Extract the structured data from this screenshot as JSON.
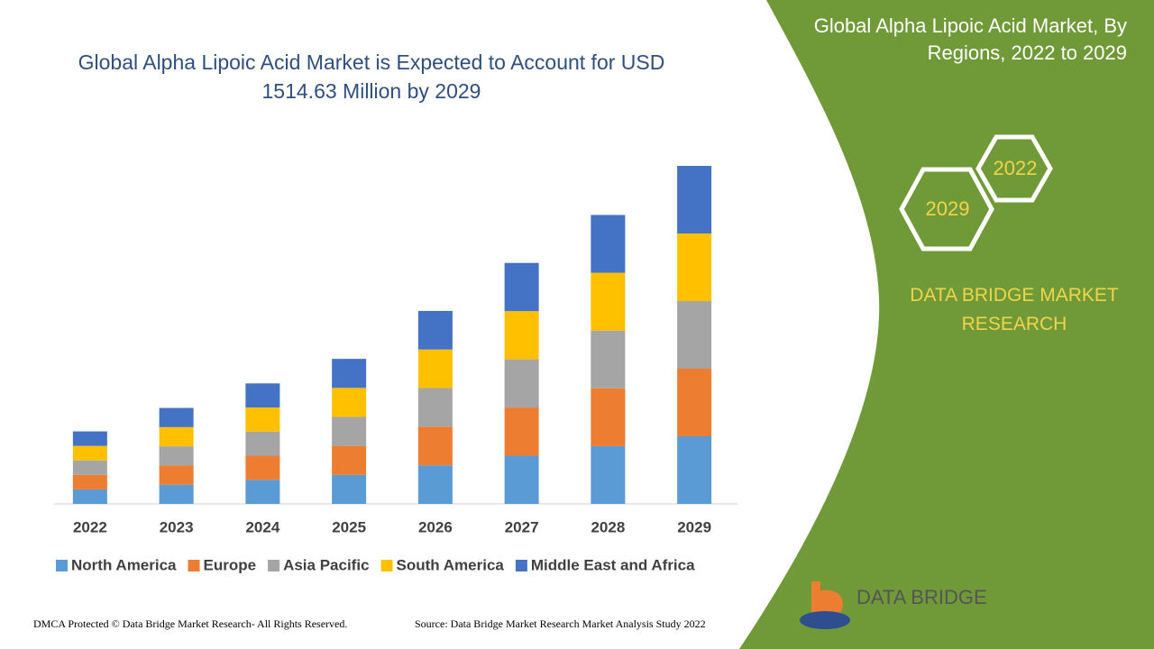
{
  "chart_data": {
    "type": "stacked_bar",
    "title": "Global Alpha Lipoic Acid Market is Expected to Account for USD 1514.63 Million by 2029",
    "categories": [
      "2022",
      "2023",
      "2024",
      "2025",
      "2026",
      "2027",
      "2028",
      "2029"
    ],
    "series": [
      {
        "name": "North America",
        "color": "#5b9bd5",
        "values": [
          65,
          86,
          108,
          130,
          173,
          216,
          259,
          303
        ]
      },
      {
        "name": "Europe",
        "color": "#ed7d31",
        "values": [
          65,
          86,
          108,
          130,
          173,
          216,
          259,
          303
        ]
      },
      {
        "name": "Asia Pacific",
        "color": "#a5a5a5",
        "values": [
          65,
          86,
          108,
          130,
          173,
          216,
          259,
          303
        ]
      },
      {
        "name": "South America",
        "color": "#ffc000",
        "values": [
          65,
          86,
          108,
          130,
          173,
          216,
          259,
          303
        ]
      },
      {
        "name": "Middle East and Africa",
        "color": "#4472c4",
        "values": [
          65,
          86,
          108,
          130,
          173,
          216,
          259,
          303
        ]
      }
    ],
    "ylim": [
      0,
      1600
    ],
    "legend": "bottom"
  },
  "panel": {
    "title": "Global Alpha Lipoic Acid Market, By Regions, 2022 to 2029",
    "hex_small": "2022",
    "hex_large": "2029",
    "brand": "DATA BRIDGE MARKET RESEARCH",
    "logo": "DATA BRIDGE"
  },
  "footer": {
    "left": "DMCA Protected © Data Bridge Market Research- All Rights Reserved.",
    "right": "Source: Data Bridge Market Research Market Analysis Study 2022"
  }
}
